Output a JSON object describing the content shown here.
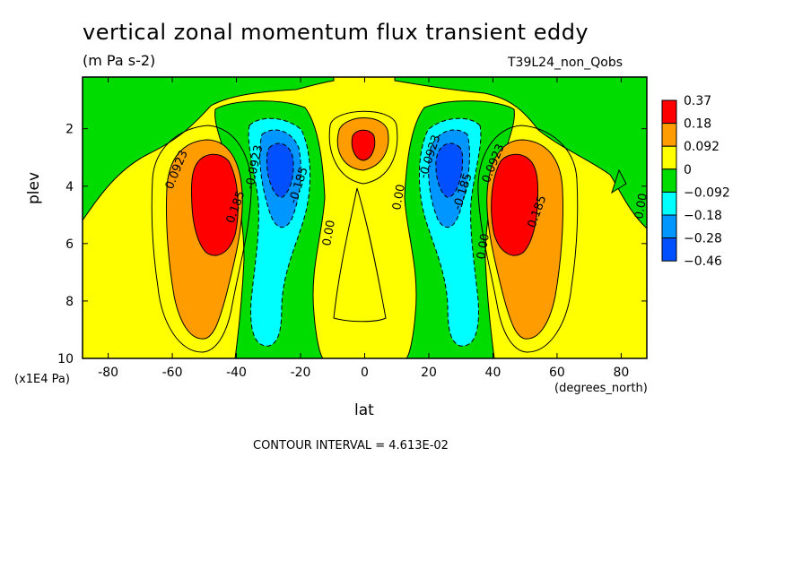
{
  "chart_data": {
    "type": "heatmap",
    "title": "vertical zonal momentum flux transient eddy",
    "units": "(m Pa s-2)",
    "run_label": "T39L24_non_Qobs",
    "xlabel": "lat",
    "x_units": "(degrees_north)",
    "ylabel": "plev",
    "y_units": "(x1E4 Pa)",
    "xlim": [
      -88,
      88
    ],
    "ylim": [
      10,
      0.2
    ],
    "x_ticks": [
      -80,
      -60,
      -40,
      -20,
      0,
      20,
      40,
      60,
      80
    ],
    "y_ticks": [
      2,
      4,
      6,
      8,
      10
    ],
    "contour_interval_text": "CONTOUR INTERVAL = 4.613E-02",
    "colorbar": {
      "levels": [
        "0.37",
        "0.18",
        "0.092",
        "0",
        "−0.092",
        "−0.18",
        "−0.28",
        "−0.46"
      ],
      "colors": [
        "#ff0000",
        "#ff9d00",
        "#ffff00",
        "#00dc00",
        "#00ffff",
        "#0096ff",
        "#0050ff"
      ]
    },
    "features": [
      {
        "lat": -48,
        "plev": 4.3,
        "value": 0.37
      },
      {
        "lat": 48,
        "plev": 4.3,
        "value": 0.37
      },
      {
        "lat": -28,
        "plev": 3.3,
        "value": -0.46
      },
      {
        "lat": 28,
        "plev": 3.3,
        "value": -0.46
      },
      {
        "lat": 0,
        "plev": 2.6,
        "value": 0.37
      }
    ],
    "contour_labels": [
      "0.0923",
      "0.185",
      "0.0923",
      "0.185",
      "-0.0923",
      "-0.185",
      "-0.0923",
      "-0.185",
      "0.00",
      "0.00",
      "0.00",
      "0.00"
    ]
  }
}
